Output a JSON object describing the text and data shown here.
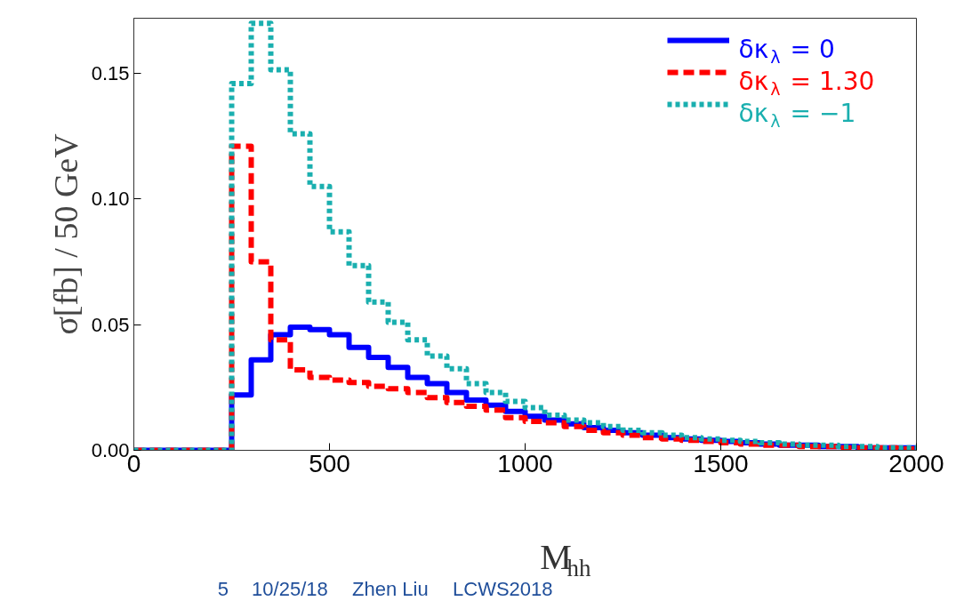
{
  "chart_data": {
    "type": "histogram",
    "xlabel": "M$_{hh}$",
    "ylabel": "σ[fb] / 50 GeV",
    "bins": [
      0,
      50,
      100,
      150,
      200,
      250,
      300,
      350,
      400,
      450,
      500,
      550,
      600,
      650,
      700,
      750,
      800,
      850,
      900,
      950,
      1000,
      1050,
      1100,
      1150,
      1200,
      1250,
      1300,
      1350,
      1400,
      1450,
      1500,
      1550,
      1600,
      1650,
      1700,
      1750,
      1800,
      1850,
      1900,
      1950,
      2000
    ],
    "series": [
      {
        "name": "δκ$_{λ}$ = 0",
        "color": "#0000ff",
        "line_style": "solid",
        "values": [
          0,
          0,
          0,
          0,
          0,
          0.022,
          0.036,
          0.046,
          0.049,
          0.048,
          0.046,
          0.041,
          0.037,
          0.033,
          0.029,
          0.0265,
          0.023,
          0.02,
          0.018,
          0.0155,
          0.0135,
          0.012,
          0.0105,
          0.009,
          0.008,
          0.007,
          0.006,
          0.005,
          0.0045,
          0.004,
          0.0035,
          0.003,
          0.0025,
          0.002,
          0.002,
          0.0015,
          0.0015,
          0.001,
          0.001,
          0.001
        ]
      },
      {
        "name": "δκ$_{λ}$ = 1.30",
        "color": "#ff0000",
        "line_style": "dashed",
        "values": [
          0,
          0,
          0,
          0,
          0,
          0.121,
          0.075,
          0.044,
          0.032,
          0.029,
          0.028,
          0.027,
          0.0255,
          0.0245,
          0.023,
          0.021,
          0.019,
          0.0175,
          0.016,
          0.013,
          0.0115,
          0.011,
          0.0095,
          0.008,
          0.007,
          0.006,
          0.005,
          0.0045,
          0.004,
          0.0035,
          0.003,
          0.0025,
          0.002,
          0.002,
          0.0015,
          0.0015,
          0.001,
          0.001,
          0.001,
          0.0005
        ]
      },
      {
        "name": "δκ$_{λ}$ = −1",
        "color": "#1aafaf",
        "line_style": "dotted",
        "values": [
          0,
          0,
          0,
          0,
          0,
          0.146,
          0.17,
          0.1515,
          0.126,
          0.105,
          0.087,
          0.0735,
          0.059,
          0.051,
          0.044,
          0.0375,
          0.0325,
          0.0265,
          0.023,
          0.0195,
          0.017,
          0.014,
          0.012,
          0.011,
          0.0095,
          0.008,
          0.007,
          0.006,
          0.005,
          0.0045,
          0.004,
          0.0035,
          0.003,
          0.0025,
          0.002,
          0.002,
          0.0015,
          0.0015,
          0.001,
          0.001
        ]
      }
    ],
    "xlim": [
      0,
      2000
    ],
    "xticks": [
      0,
      500,
      1000,
      1500,
      2000
    ],
    "ylim": [
      0,
      0.172
    ],
    "yticks": [
      {
        "value": 0,
        "label": "0.00"
      },
      {
        "value": 0.05,
        "label": "0.05"
      },
      {
        "value": 0.1,
        "label": "0.10"
      },
      {
        "value": 0.15,
        "label": "0.15"
      }
    ],
    "grid": false,
    "legend": "top right",
    "annotations": [
      "5",
      "10/25/18",
      "Zhen Liu",
      "LCWS2018"
    ]
  }
}
